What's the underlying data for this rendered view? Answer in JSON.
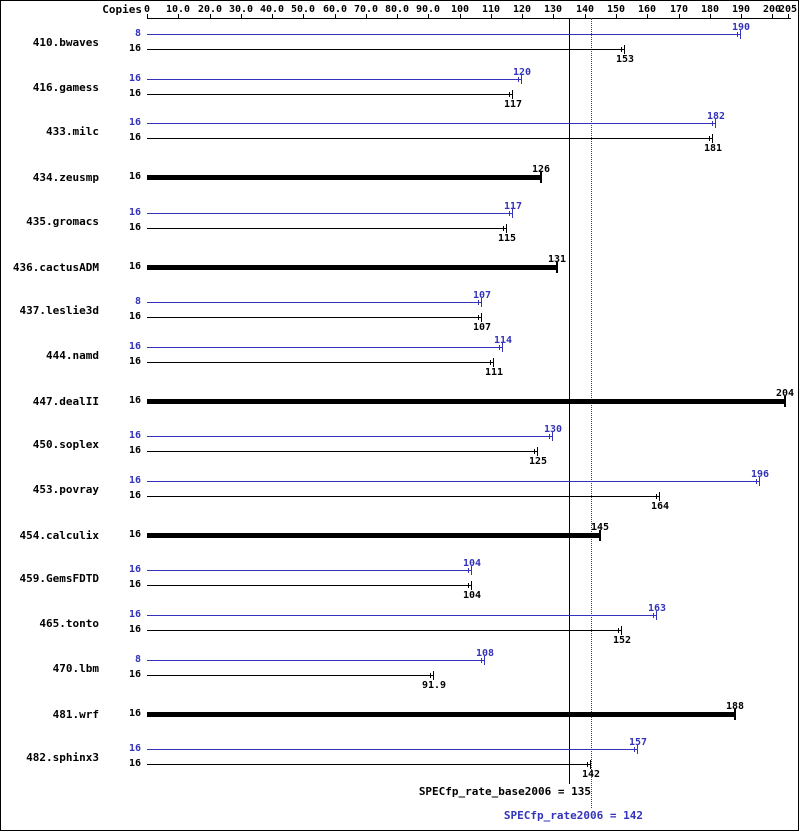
{
  "chart_data": {
    "type": "bar",
    "orientation": "horizontal",
    "title": "",
    "xlabel": "",
    "ylabel": "",
    "copies_header": "Copies",
    "xlim": [
      0,
      205
    ],
    "grid": false,
    "legend_position": "none",
    "colors": {
      "peak": "#3333bb",
      "base": "#000000"
    },
    "xticks": [
      0,
      10,
      20,
      30,
      40,
      50,
      60,
      70,
      80,
      90,
      100,
      110,
      120,
      130,
      140,
      150,
      160,
      170,
      180,
      190,
      200,
      205
    ],
    "xtick_labels": [
      "0",
      "10.0",
      "20.0",
      "30.0",
      "40.0",
      "50.0",
      "60.0",
      "70.0",
      "80.0",
      "90.0",
      "100",
      "110",
      "120",
      "130",
      "140",
      "150",
      "160",
      "170",
      "180",
      "190",
      "200",
      "205"
    ],
    "benchmarks": [
      {
        "name": "410.bwaves",
        "bars": [
          {
            "kind": "peak",
            "copies": "8",
            "value": 190,
            "label": "190"
          },
          {
            "kind": "base",
            "copies": "16",
            "value": 153,
            "label": "153"
          }
        ]
      },
      {
        "name": "416.gamess",
        "bars": [
          {
            "kind": "peak",
            "copies": "16",
            "value": 120,
            "label": "120"
          },
          {
            "kind": "base",
            "copies": "16",
            "value": 117,
            "label": "117"
          }
        ]
      },
      {
        "name": "433.milc",
        "bars": [
          {
            "kind": "peak",
            "copies": "16",
            "value": 182,
            "label": "182"
          },
          {
            "kind": "base",
            "copies": "16",
            "value": 181,
            "label": "181"
          }
        ]
      },
      {
        "name": "434.zeusmp",
        "bars": [
          {
            "kind": "base_thick",
            "copies": "16",
            "value": 126,
            "label": "126"
          }
        ]
      },
      {
        "name": "435.gromacs",
        "bars": [
          {
            "kind": "peak",
            "copies": "16",
            "value": 117,
            "label": "117"
          },
          {
            "kind": "base",
            "copies": "16",
            "value": 115,
            "label": "115"
          }
        ]
      },
      {
        "name": "436.cactusADM",
        "bars": [
          {
            "kind": "base_thick",
            "copies": "16",
            "value": 131,
            "label": "131"
          }
        ]
      },
      {
        "name": "437.leslie3d",
        "bars": [
          {
            "kind": "peak",
            "copies": "8",
            "value": 107,
            "label": "107"
          },
          {
            "kind": "base",
            "copies": "16",
            "value": 107,
            "label": "107"
          }
        ]
      },
      {
        "name": "444.namd",
        "bars": [
          {
            "kind": "peak",
            "copies": "16",
            "value": 114,
            "label": "114"
          },
          {
            "kind": "base",
            "copies": "16",
            "value": 111,
            "label": "111"
          }
        ]
      },
      {
        "name": "447.dealII",
        "bars": [
          {
            "kind": "base_thick",
            "copies": "16",
            "value": 204,
            "label": "204"
          }
        ]
      },
      {
        "name": "450.soplex",
        "bars": [
          {
            "kind": "peak",
            "copies": "16",
            "value": 130,
            "label": "130"
          },
          {
            "kind": "base",
            "copies": "16",
            "value": 125,
            "label": "125"
          }
        ]
      },
      {
        "name": "453.povray",
        "bars": [
          {
            "kind": "peak",
            "copies": "16",
            "value": 196,
            "label": "196"
          },
          {
            "kind": "base",
            "copies": "16",
            "value": 164,
            "label": "164"
          }
        ]
      },
      {
        "name": "454.calculix",
        "bars": [
          {
            "kind": "base_thick",
            "copies": "16",
            "value": 145,
            "label": "145"
          }
        ]
      },
      {
        "name": "459.GemsFDTD",
        "bars": [
          {
            "kind": "peak",
            "copies": "16",
            "value": 104,
            "label": "104"
          },
          {
            "kind": "base",
            "copies": "16",
            "value": 104,
            "label": "104"
          }
        ]
      },
      {
        "name": "465.tonto",
        "bars": [
          {
            "kind": "peak",
            "copies": "16",
            "value": 163,
            "label": "163"
          },
          {
            "kind": "base",
            "copies": "16",
            "value": 152,
            "label": "152"
          }
        ]
      },
      {
        "name": "470.lbm",
        "bars": [
          {
            "kind": "peak",
            "copies": "8",
            "value": 108,
            "label": "108"
          },
          {
            "kind": "base",
            "copies": "16",
            "value": 91.9,
            "label": "91.9"
          }
        ]
      },
      {
        "name": "481.wrf",
        "bars": [
          {
            "kind": "base_thick",
            "copies": "16",
            "value": 188,
            "label": "188"
          }
        ]
      },
      {
        "name": "482.sphinx3",
        "bars": [
          {
            "kind": "peak",
            "copies": "16",
            "value": 157,
            "label": "157"
          },
          {
            "kind": "base",
            "copies": "16",
            "value": 142,
            "label": "142"
          }
        ]
      }
    ],
    "reference_lines": [
      {
        "id": "base",
        "value": 135,
        "style": "solid",
        "color": "#000000",
        "label": "SPECfp_rate_base2006 = 135"
      },
      {
        "id": "peak",
        "value": 142,
        "style": "dotted",
        "color": "#3333bb",
        "label": "SPECfp_rate2006 = 142"
      }
    ]
  }
}
